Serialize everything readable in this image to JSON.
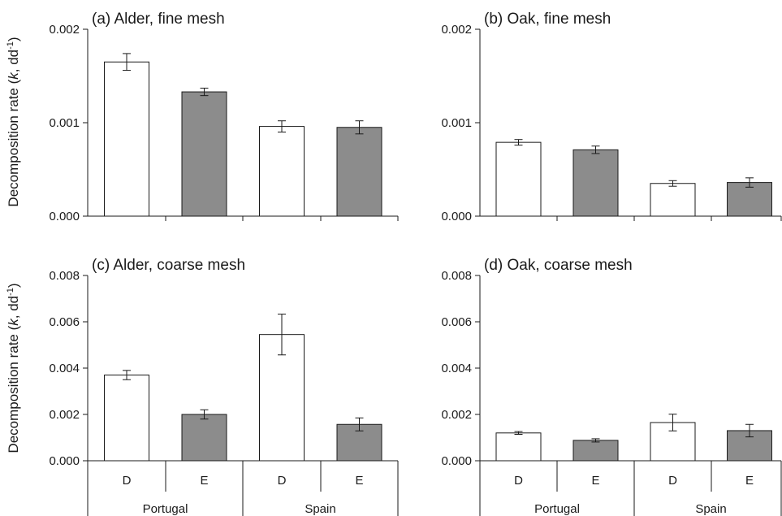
{
  "chart_data": [
    {
      "type": "bar",
      "title": "(a) Alder, fine mesh",
      "ylabel": "Decomposition rate (k, dd-1)",
      "ylabel_parts": {
        "prefix": "Decomposition rate (",
        "k": "k",
        "unit": ", dd",
        "exp": "-1",
        "suffix": ")"
      },
      "ylim": [
        0,
        0.002
      ],
      "yticks": [
        "0.000",
        "0.001",
        "0.002"
      ],
      "categories": [
        "D",
        "E",
        "D",
        "E"
      ],
      "groups": [],
      "values": [
        0.00165,
        0.00133,
        0.00096,
        0.00095
      ],
      "errors": [
        9e-05,
        4e-05,
        6e-05,
        7e-05
      ],
      "bar_colors": [
        "#ffffff",
        "#8c8c8c",
        "#ffffff",
        "#8c8c8c"
      ]
    },
    {
      "type": "bar",
      "title": "(b) Oak, fine mesh",
      "ylabel": "",
      "ylim": [
        0,
        0.002
      ],
      "yticks": [
        "0.000",
        "0.001",
        "0.002"
      ],
      "categories": [
        "D",
        "E",
        "D",
        "E"
      ],
      "groups": [],
      "values": [
        0.00079,
        0.00071,
        0.00035,
        0.00036
      ],
      "errors": [
        3e-05,
        4e-05,
        3e-05,
        5e-05
      ],
      "bar_colors": [
        "#ffffff",
        "#8c8c8c",
        "#ffffff",
        "#8c8c8c"
      ]
    },
    {
      "type": "bar",
      "title": "(c) Alder, coarse mesh",
      "ylabel": "Decomposition rate (k, dd-1)",
      "ylabel_parts": {
        "prefix": "Decomposition rate (",
        "k": "k",
        "unit": ", dd",
        "exp": "-1",
        "suffix": ")"
      },
      "ylim": [
        0,
        0.008
      ],
      "yticks": [
        "0.000",
        "0.002",
        "0.004",
        "0.006",
        "0.008"
      ],
      "categories": [
        "D",
        "E",
        "D",
        "E"
      ],
      "groups": [
        "Portugal",
        "Spain"
      ],
      "values": [
        0.0037,
        0.002,
        0.00545,
        0.00157
      ],
      "errors": [
        0.0002,
        0.0002,
        0.00088,
        0.00028
      ],
      "bar_colors": [
        "#ffffff",
        "#8c8c8c",
        "#ffffff",
        "#8c8c8c"
      ]
    },
    {
      "type": "bar",
      "title": "(d) Oak, coarse mesh",
      "ylabel": "",
      "ylim": [
        0,
        0.008
      ],
      "yticks": [
        "0.000",
        "0.002",
        "0.004",
        "0.006",
        "0.008"
      ],
      "categories": [
        "D",
        "E",
        "D",
        "E"
      ],
      "groups": [
        "Portugal",
        "Spain"
      ],
      "values": [
        0.0012,
        0.00088,
        0.00165,
        0.0013
      ],
      "errors": [
        6e-05,
        7e-05,
        0.00036,
        0.00027
      ],
      "bar_colors": [
        "#ffffff",
        "#8c8c8c",
        "#ffffff",
        "#8c8c8c"
      ]
    }
  ]
}
